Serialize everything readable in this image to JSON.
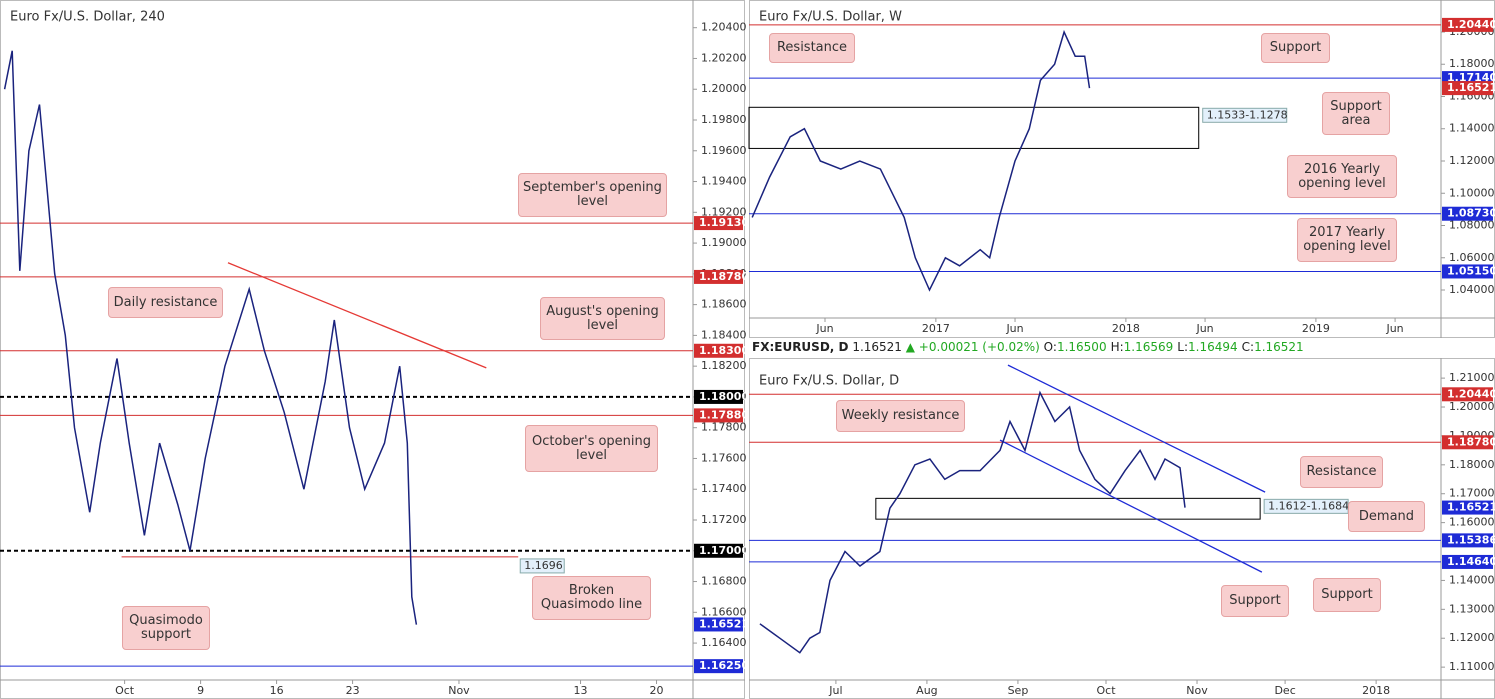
{
  "chart_data": [
    {
      "type": "line",
      "title": "Euro Fx/U.S. Dollar, 240",
      "color": "#1a237e",
      "xlim": [
        -8.2,
        37.4
      ],
      "ylim": [
        1.1616,
        1.2058
      ],
      "xticks": [
        {
          "value": 0,
          "label": "Oct"
        },
        {
          "value": 5,
          "label": "9"
        },
        {
          "value": 10,
          "label": "16"
        },
        {
          "value": 15,
          "label": "23"
        },
        {
          "value": 22,
          "label": "Nov"
        },
        {
          "value": 30,
          "label": "13"
        },
        {
          "value": 35,
          "label": "20"
        }
      ],
      "yticks": [
        {
          "value": 1.204,
          "label": "1.20400"
        },
        {
          "value": 1.202,
          "label": "1.20200"
        },
        {
          "value": 1.2,
          "label": "1.20000"
        },
        {
          "value": 1.198,
          "label": "1.19800"
        },
        {
          "value": 1.196,
          "label": "1.19600"
        },
        {
          "value": 1.194,
          "label": "1.19400"
        },
        {
          "value": 1.192,
          "label": "1.19200"
        },
        {
          "value": 1.19,
          "label": "1.19000"
        },
        {
          "value": 1.188,
          "label": "1.18800"
        },
        {
          "value": 1.186,
          "label": "1.18600"
        },
        {
          "value": 1.184,
          "label": "1.18400"
        },
        {
          "value": 1.182,
          "label": "1.18200"
        },
        {
          "value": 1.18,
          "label": "1.18000"
        },
        {
          "value": 1.178,
          "label": "1.17800"
        },
        {
          "value": 1.176,
          "label": "1.17600"
        },
        {
          "value": 1.174,
          "label": "1.17400"
        },
        {
          "value": 1.172,
          "label": "1.17200"
        },
        {
          "value": 1.17,
          "label": "1.17000"
        },
        {
          "value": 1.168,
          "label": "1.16800"
        },
        {
          "value": 1.166,
          "label": "1.16600"
        },
        {
          "value": 1.164,
          "label": "1.16400"
        }
      ],
      "x": [
        -7.9,
        -7.4,
        -6.9,
        -6.3,
        -5.6,
        -4.6,
        -3.9,
        -3.3,
        -2.3,
        -1.6,
        -0.5,
        0.3,
        1.3,
        2.3,
        3.5,
        4.3,
        5.3,
        6.6,
        8.2,
        9.2,
        10.5,
        11.8,
        13.2,
        13.8,
        14.8,
        15.8,
        17.1,
        18.1,
        18.6,
        18.9,
        19.2
      ],
      "values": [
        1.2,
        1.2025,
        1.1882,
        1.196,
        1.199,
        1.188,
        1.184,
        1.178,
        1.1725,
        1.177,
        1.1825,
        1.177,
        1.171,
        1.177,
        1.173,
        1.17,
        1.176,
        1.182,
        1.187,
        1.183,
        1.179,
        1.174,
        1.181,
        1.185,
        1.178,
        1.174,
        1.177,
        1.182,
        1.177,
        1.167,
        1.1652
      ],
      "levels": [
        {
          "value": 1.1913,
          "label": "1.19130",
          "color": "#d32f2f"
        },
        {
          "value": 1.1878,
          "label": "1.18780",
          "color": "#d32f2f"
        },
        {
          "value": 1.183,
          "label": "1.18300",
          "color": "#d32f2f"
        },
        {
          "value": 1.18,
          "label": "1.18000",
          "color": "#000000",
          "style": "dashed"
        },
        {
          "value": 1.1788,
          "label": "1.17880",
          "color": "#d32f2f"
        },
        {
          "value": 1.17,
          "label": "1.17000",
          "color": "#000000",
          "style": "dashed"
        },
        {
          "value": 1.1625,
          "label": "1.16250",
          "color": "#1e2bd6"
        }
      ],
      "current": {
        "value": 1.16521,
        "label": "1.16521",
        "color": "#1e2bd6"
      },
      "segments": [
        {
          "x": [
            -0.2,
            25.9
          ],
          "value": 1.1696,
          "color": "#d32f2f"
        }
      ],
      "trendlines": [
        {
          "x": [
            6.8,
            23.8
          ],
          "y": [
            1.18872,
            1.18189
          ],
          "color": "#e53935"
        }
      ],
      "annotations": [
        "September's opening level",
        "Daily resistance",
        "August's opening level",
        "October's opening level",
        "Broken Quasimodo line",
        "Quasimodo support"
      ]
    },
    {
      "type": "line",
      "title": "Euro Fx/U.S. Dollar, W",
      "color": "#1a237e",
      "xlim": [
        0.2,
        43.9
      ],
      "ylim": [
        1.02264,
        1.21364
      ],
      "xticks": [
        {
          "value": 5,
          "label": "Jun"
        },
        {
          "value": 12,
          "label": "2017"
        },
        {
          "value": 17,
          "label": "Jun"
        },
        {
          "value": 24,
          "label": "2018"
        },
        {
          "value": 29,
          "label": "Jun"
        },
        {
          "value": 36,
          "label": "2019"
        },
        {
          "value": 41,
          "label": "Jun"
        }
      ],
      "yticks": [
        {
          "value": 1.2,
          "label": "1.20000"
        },
        {
          "value": 1.18,
          "label": "1.18000"
        },
        {
          "value": 1.16,
          "label": "1.16000"
        },
        {
          "value": 1.14,
          "label": "1.14000"
        },
        {
          "value": 1.12,
          "label": "1.12000"
        },
        {
          "value": 1.1,
          "label": "1.10000"
        },
        {
          "value": 1.08,
          "label": "1.08000"
        },
        {
          "value": 1.06,
          "label": "1.06000"
        },
        {
          "value": 1.04,
          "label": "1.04000"
        }
      ],
      "x": [
        0.4,
        1.5,
        2.8,
        3.7,
        4.7,
        6.0,
        7.2,
        8.5,
        10.0,
        10.7,
        11.6,
        12.6,
        13.5,
        14.8,
        15.4,
        16.0,
        17.0,
        17.9,
        18.6,
        19.5,
        20.1,
        20.8,
        21.4,
        21.7
      ],
      "values": [
        1.085,
        1.11,
        1.135,
        1.14,
        1.12,
        1.115,
        1.12,
        1.115,
        1.085,
        1.06,
        1.04,
        1.06,
        1.055,
        1.065,
        1.06,
        1.085,
        1.12,
        1.14,
        1.17,
        1.18,
        1.2,
        1.185,
        1.185,
        1.1652
      ],
      "levels": [
        {
          "value": 1.2044,
          "label": "1.20440",
          "color": "#d32f2f"
        },
        {
          "value": 1.1714,
          "label": "1.17140",
          "color": "#1e2bd6"
        },
        {
          "value": 1.0873,
          "label": "1.08730",
          "color": "#1e2bd6"
        },
        {
          "value": 1.0515,
          "label": "1.05150",
          "color": "#1e2bd6"
        }
      ],
      "current": {
        "value": 1.16521,
        "label": "1.16521",
        "color": "#d32f2f"
      },
      "zones": [
        {
          "x": [
            0.2,
            28.6
          ],
          "y": [
            1.1278,
            1.1533
          ],
          "label": "1.1533-1.1278"
        }
      ],
      "annotations": [
        "Resistance",
        "Support",
        "Support area",
        "2016 Yearly opening level",
        "2017 Yearly opening level"
      ]
    },
    {
      "type": "line",
      "title": "Euro Fx/U.S. Dollar, D",
      "color": "#1a237e",
      "header": {
        "symbol": "FX:EURUSD, D",
        "last": "1.16521",
        "change": "▲ +0.00021 (+0.02%)",
        "fields": [
          {
            "label": "O:",
            "value": "1.16500"
          },
          {
            "label": "H:",
            "value": "1.16569"
          },
          {
            "label": "L:",
            "value": "1.16494"
          },
          {
            "label": "C:",
            "value": "1.16521"
          }
        ]
      },
      "xlim": [
        -29.6,
        206.1
      ],
      "ylim": [
        1.10555,
        1.2135
      ],
      "xticks": [
        {
          "value": 0,
          "label": "Jul"
        },
        {
          "value": 31,
          "label": "Aug"
        },
        {
          "value": 62,
          "label": "Sep"
        },
        {
          "value": 92,
          "label": "Oct"
        },
        {
          "value": 123,
          "label": "Nov"
        },
        {
          "value": 153,
          "label": "Dec"
        },
        {
          "value": 184,
          "label": "2018"
        }
      ],
      "yticks": [
        {
          "value": 1.21,
          "label": "1.21000"
        },
        {
          "value": 1.2,
          "label": "1.20000"
        },
        {
          "value": 1.19,
          "label": "1.19000"
        },
        {
          "value": 1.18,
          "label": "1.18000"
        },
        {
          "value": 1.17,
          "label": "1.17000"
        },
        {
          "value": 1.16,
          "label": "1.16000"
        },
        {
          "value": 1.14,
          "label": "1.14000"
        },
        {
          "value": 1.13,
          "label": "1.13000"
        },
        {
          "value": 1.12,
          "label": "1.12000"
        },
        {
          "value": 1.11,
          "label": "1.11000"
        }
      ],
      "x": [
        -25.9,
        -19.1,
        -12.3,
        -8.9,
        -5.5,
        -2.0,
        3.1,
        8.2,
        15.0,
        18.4,
        21.8,
        26.9,
        32.0,
        37.1,
        42.2,
        49.1,
        55.9,
        59.3,
        64.4,
        69.5,
        74.6,
        79.6,
        83.0,
        88.2,
        93.4,
        98.5,
        103.6,
        108.7,
        112.1,
        117.2,
        118.9
      ],
      "values": [
        1.125,
        1.12,
        1.115,
        1.12,
        1.122,
        1.14,
        1.15,
        1.145,
        1.15,
        1.165,
        1.17,
        1.18,
        1.182,
        1.175,
        1.178,
        1.178,
        1.185,
        1.195,
        1.185,
        1.205,
        1.195,
        1.2,
        1.185,
        1.175,
        1.17,
        1.178,
        1.185,
        1.175,
        1.182,
        1.179,
        1.1652
      ],
      "levels": [
        {
          "value": 1.2044,
          "label": "1.20440",
          "color": "#d32f2f"
        },
        {
          "value": 1.1878,
          "label": "1.18780",
          "color": "#d32f2f"
        },
        {
          "value": 1.15386,
          "label": "1.15386",
          "color": "#1e2bd6"
        },
        {
          "value": 1.1464,
          "label": "1.14640",
          "color": "#1e2bd6"
        }
      ],
      "current": {
        "value": 1.16521,
        "label": "1.16521",
        "color": "#1e2bd6"
      },
      "zones": [
        {
          "x": [
            13.6,
            144.5
          ],
          "y": [
            1.1612,
            1.1684
          ],
          "label": "1.1612-1.1684"
        }
      ],
      "trendlines": [
        {
          "x": [
            58.6,
            146.2
          ],
          "y": [
            1.2145,
            1.17055
          ],
          "color": "#1e2bd6"
        },
        {
          "x": [
            55.9,
            145.1
          ],
          "y": [
            1.18855,
            1.14287
          ],
          "color": "#1e2bd6"
        }
      ],
      "annotations": [
        "Weekly resistance",
        "Resistance",
        "Demand",
        "Support",
        "Support"
      ]
    }
  ]
}
